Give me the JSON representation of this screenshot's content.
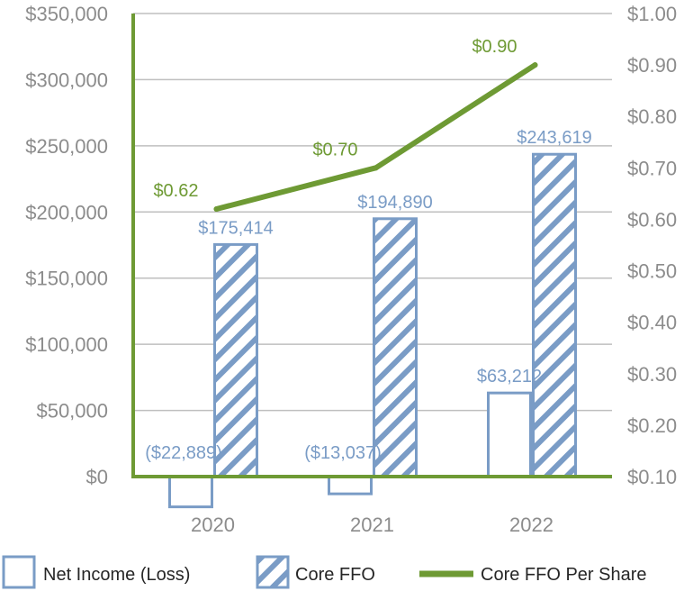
{
  "chart_data": {
    "type": "bar+line",
    "title": "",
    "categories": [
      "2020",
      "2021",
      "2022"
    ],
    "series": [
      {
        "name": "Net Income (Loss)",
        "kind": "bar",
        "axis": "left",
        "values": [
          -22889,
          -13037,
          63212
        ],
        "labels": [
          "($22,889)",
          "($13,037)",
          "$63,212"
        ],
        "style": "outline"
      },
      {
        "name": "Core FFO",
        "kind": "bar",
        "axis": "left",
        "values": [
          175414,
          194890,
          243619
        ],
        "labels": [
          "$175,414",
          "$194,890",
          "$243,619"
        ],
        "style": "hatched"
      },
      {
        "name": "Core FFO Per Share",
        "kind": "line",
        "axis": "right",
        "values": [
          0.62,
          0.7,
          0.9
        ],
        "labels": [
          "$0.62",
          "$0.70",
          "$0.90"
        ]
      }
    ],
    "y_left": {
      "min": 0,
      "max": 350000,
      "ticks": [
        0,
        50000,
        100000,
        150000,
        200000,
        250000,
        300000,
        350000
      ],
      "tick_labels": [
        "$0",
        "$50,000",
        "$100,000",
        "$150,000",
        "$200,000",
        "$250,000",
        "$300,000",
        "$350,000"
      ]
    },
    "y_right": {
      "min": 0.1,
      "max": 1.0,
      "ticks": [
        0.1,
        0.2,
        0.3,
        0.4,
        0.5,
        0.6,
        0.7,
        0.8,
        0.9,
        1.0
      ],
      "tick_labels": [
        "$0.10",
        "$0.20",
        "$0.30",
        "$0.40",
        "$0.50",
        "$0.60",
        "$0.70",
        "$0.80",
        "$0.90",
        "$1.00"
      ]
    },
    "grid": true,
    "legend": {
      "position": "bottom",
      "items": [
        "Net Income (Loss)",
        "Core FFO",
        "Core FFO Per Share"
      ]
    },
    "colors": {
      "bar_outline": "#7a9cc6",
      "line": "#6e9a34",
      "axis": "#6e9a34",
      "grid": "#bfbfbf",
      "tick_text": "#8c8c8c"
    }
  }
}
